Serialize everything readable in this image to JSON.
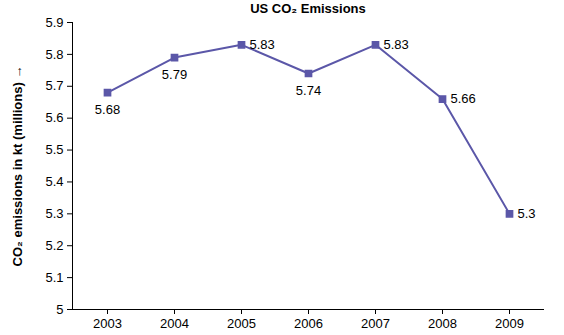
{
  "chart_data": {
    "type": "line",
    "title": "US CO₂ Emissions",
    "ylabel": "CO₂ emissions in kt (millions)",
    "categories": [
      "2003",
      "2004",
      "2005",
      "2006",
      "2007",
      "2008",
      "2009"
    ],
    "values": [
      5.68,
      5.79,
      5.83,
      5.74,
      5.83,
      5.66,
      5.3
    ],
    "color": "#5b57a8",
    "marker": "square",
    "line_style": "solid",
    "ylim": [
      5,
      5.9
    ],
    "yticks": [
      5,
      5.1,
      5.2,
      5.3,
      5.4,
      5.5,
      5.6,
      5.7,
      5.8,
      5.9
    ],
    "data_labels": true,
    "grid": false
  }
}
